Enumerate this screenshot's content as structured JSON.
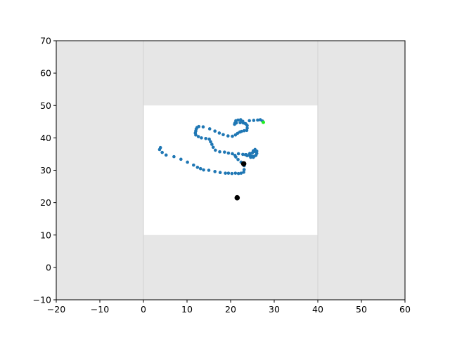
{
  "chart_data": {
    "type": "scatter",
    "title": "",
    "xlabel": "",
    "ylabel": "",
    "xlim": [
      -20,
      60
    ],
    "ylim": [
      -10,
      70
    ],
    "xticks": [
      -20,
      -10,
      0,
      10,
      20,
      30,
      40,
      50,
      60
    ],
    "yticks": [
      -10,
      0,
      10,
      20,
      30,
      40,
      50,
      60,
      70
    ],
    "xtick_labels": [
      "−20",
      "−10",
      "0",
      "10",
      "20",
      "30",
      "40",
      "50",
      "60"
    ],
    "ytick_labels": [
      "−10",
      "0",
      "10",
      "20",
      "30",
      "40",
      "50",
      "60",
      "70"
    ],
    "grid": false,
    "legend": "none",
    "colors": {
      "outer_region": "#e6e6e6",
      "inner_region": "#ffffff",
      "region_border": "#d5d5d5",
      "trajectory": "#1f77b4",
      "end_point": "#22ee22",
      "markers": "#000000"
    },
    "regions": [
      {
        "name": "outer",
        "x": [
          -20,
          60
        ],
        "y": [
          -10,
          70
        ]
      },
      {
        "name": "inner",
        "x": [
          0,
          40
        ],
        "y": [
          10,
          50
        ]
      }
    ],
    "region_lines_x": [
      0,
      40
    ],
    "series": [
      {
        "values": [
          [
            3.9,
            37.0
          ],
          [
            3.7,
            36.4
          ],
          [
            4.3,
            35.5
          ],
          [
            5.2,
            34.7
          ],
          [
            7.0,
            34.2
          ],
          [
            8.6,
            33.4
          ],
          [
            10.1,
            32.5
          ],
          [
            11.5,
            31.6
          ],
          [
            12.4,
            30.9
          ],
          [
            13.1,
            30.5
          ],
          [
            13.8,
            30.1
          ],
          [
            15.0,
            30.0
          ],
          [
            16.4,
            29.6
          ],
          [
            17.6,
            29.3
          ],
          [
            18.8,
            29.1
          ],
          [
            19.5,
            29.1
          ],
          [
            20.3,
            29.0
          ],
          [
            21.1,
            29.1
          ],
          [
            21.8,
            29.0
          ],
          [
            22.4,
            29.1
          ],
          [
            23.0,
            29.4
          ],
          [
            23.1,
            30.2
          ],
          [
            23.1,
            31.4
          ],
          [
            22.4,
            32.5
          ],
          [
            21.7,
            33.3
          ],
          [
            21.2,
            34.1
          ],
          [
            21.0,
            34.6
          ],
          [
            21.8,
            35.1
          ],
          [
            22.8,
            34.9
          ],
          [
            23.6,
            34.8
          ],
          [
            24.3,
            34.6
          ],
          [
            24.8,
            34.4
          ],
          [
            25.4,
            34.3
          ],
          [
            25.8,
            34.6
          ],
          [
            26.0,
            35.2
          ],
          [
            26.0,
            35.9
          ],
          [
            25.6,
            36.4
          ],
          [
            25.2,
            36.0
          ],
          [
            25.0,
            35.4
          ],
          [
            24.4,
            35.2
          ],
          [
            23.8,
            34.5
          ],
          [
            24.6,
            34.0
          ],
          [
            25.2,
            34.0
          ],
          [
            25.5,
            35.8
          ],
          [
            25.0,
            34.2
          ],
          [
            23.4,
            34.8
          ],
          [
            20.4,
            35.1
          ],
          [
            19.5,
            35.3
          ],
          [
            18.6,
            35.6
          ],
          [
            17.5,
            35.7
          ],
          [
            16.5,
            36.2
          ],
          [
            16.0,
            37.1
          ],
          [
            15.7,
            38.0
          ],
          [
            15.4,
            38.8
          ],
          [
            15.1,
            39.6
          ],
          [
            14.3,
            39.8
          ],
          [
            13.3,
            40.0
          ],
          [
            12.6,
            40.4
          ],
          [
            12.0,
            40.9
          ],
          [
            11.9,
            41.5
          ],
          [
            12.0,
            42.1
          ],
          [
            12.1,
            42.7
          ],
          [
            12.3,
            43.2
          ],
          [
            12.7,
            43.5
          ],
          [
            13.7,
            43.4
          ],
          [
            15.2,
            42.8
          ],
          [
            16.4,
            42.1
          ],
          [
            17.4,
            41.5
          ],
          [
            18.3,
            41.0
          ],
          [
            19.4,
            40.6
          ],
          [
            20.4,
            40.5
          ],
          [
            21.1,
            40.9
          ],
          [
            21.6,
            41.4
          ],
          [
            22.1,
            41.8
          ],
          [
            22.5,
            42.0
          ],
          [
            23.1,
            42.2
          ],
          [
            23.7,
            42.3
          ],
          [
            23.8,
            43.0
          ],
          [
            23.8,
            43.8
          ],
          [
            23.5,
            44.3
          ],
          [
            22.9,
            44.6
          ],
          [
            22.2,
            44.7
          ],
          [
            21.3,
            44.6
          ],
          [
            20.9,
            44.2
          ],
          [
            21.0,
            44.6
          ],
          [
            21.2,
            45.3
          ],
          [
            21.7,
            45.5
          ],
          [
            22.3,
            45.6
          ],
          [
            22.8,
            45.1
          ],
          [
            23.4,
            44.4
          ],
          [
            24.3,
            45.3
          ],
          [
            25.3,
            45.4
          ],
          [
            26.2,
            45.5
          ],
          [
            26.8,
            45.6
          ],
          [
            27.3,
            45.2
          ]
        ]
      }
    ],
    "end_point": [
      27.5,
      44.8
    ],
    "markers": [
      [
        23.0,
        32.0
      ],
      [
        21.5,
        21.5
      ]
    ]
  }
}
